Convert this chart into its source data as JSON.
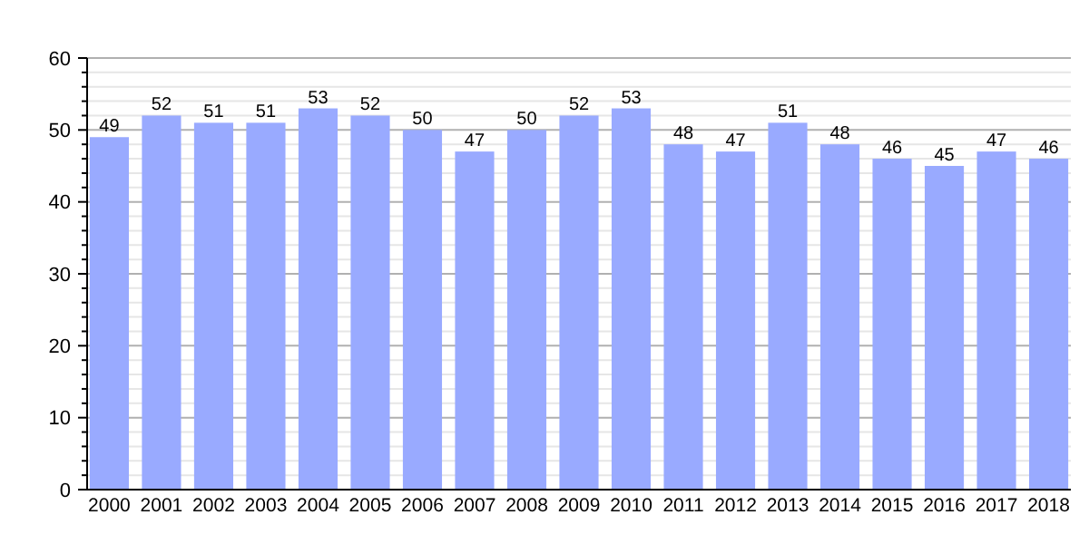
{
  "chart_data": {
    "type": "bar",
    "categories": [
      "2000",
      "2001",
      "2002",
      "2003",
      "2004",
      "2005",
      "2006",
      "2007",
      "2008",
      "2009",
      "2010",
      "2011",
      "2012",
      "2013",
      "2014",
      "2015",
      "2016",
      "2017",
      "2018"
    ],
    "values": [
      49,
      52,
      51,
      51,
      53,
      52,
      50,
      47,
      50,
      52,
      53,
      48,
      47,
      51,
      48,
      46,
      45,
      47,
      46
    ],
    "color": "#99aaff",
    "data_labels": true,
    "grid": "y",
    "ylim": [
      0,
      60
    ],
    "yticks": [
      0,
      {
        "value": 2,
        "label": null
      },
      {
        "value": 4,
        "label": null
      },
      {
        "value": 6,
        "label": null
      },
      {
        "value": 8,
        "label": null
      },
      10,
      {
        "value": 12,
        "label": null
      },
      {
        "value": 14,
        "label": null
      },
      {
        "value": 16,
        "label": null
      },
      {
        "value": 18,
        "label": null
      },
      20,
      {
        "value": 22,
        "label": null
      },
      {
        "value": 24,
        "label": null
      },
      {
        "value": 26,
        "label": null
      },
      {
        "value": 28,
        "label": null
      },
      30,
      {
        "value": 32,
        "label": null
      },
      {
        "value": 34,
        "label": null
      },
      {
        "value": 36,
        "label": null
      },
      {
        "value": 38,
        "label": null
      },
      40,
      {
        "value": 42,
        "label": null
      },
      {
        "value": 44,
        "label": null
      },
      {
        "value": 46,
        "label": null
      },
      {
        "value": 48,
        "label": null
      },
      50,
      {
        "value": 52,
        "label": null
      },
      {
        "value": 54,
        "label": null
      },
      {
        "value": 56,
        "label": null
      },
      {
        "value": 58,
        "label": null
      },
      60
    ]
  }
}
